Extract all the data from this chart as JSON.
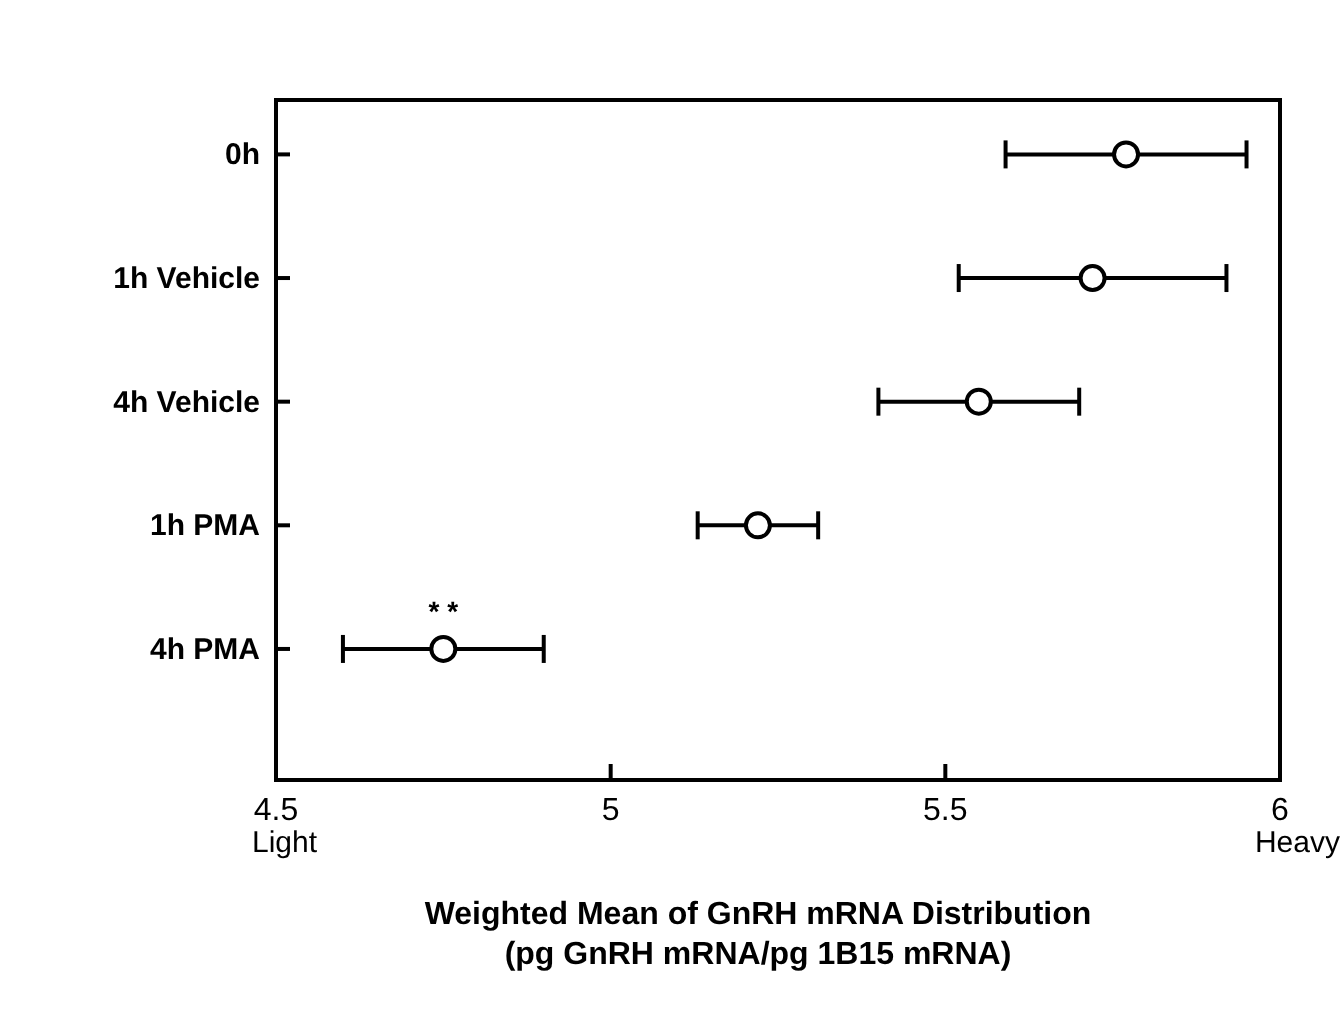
{
  "chart_data": {
    "type": "scatter",
    "orientation": "horizontal",
    "categories": [
      "0h",
      "1h Vehicle",
      "4h Vehicle",
      "1h PMA",
      "4h PMA"
    ],
    "values": [
      5.77,
      5.72,
      5.55,
      5.22,
      4.75
    ],
    "errors": [
      0.18,
      0.2,
      0.15,
      0.09,
      0.15
    ],
    "color": "#000000",
    "marker": "circle",
    "grid": false,
    "xlim": [
      4.5,
      6
    ],
    "xticks": [
      4.5,
      5,
      5.5,
      6
    ],
    "xlabel": "Weighted Mean of GnRH mRNA Distribution\n(pg GnRH mRNA/pg 1B15 mRNA)",
    "annotations": [
      "Light",
      "Heavy",
      {
        "text": "* *",
        "x": 4.75,
        "y": "4h PMA"
      }
    ]
  }
}
